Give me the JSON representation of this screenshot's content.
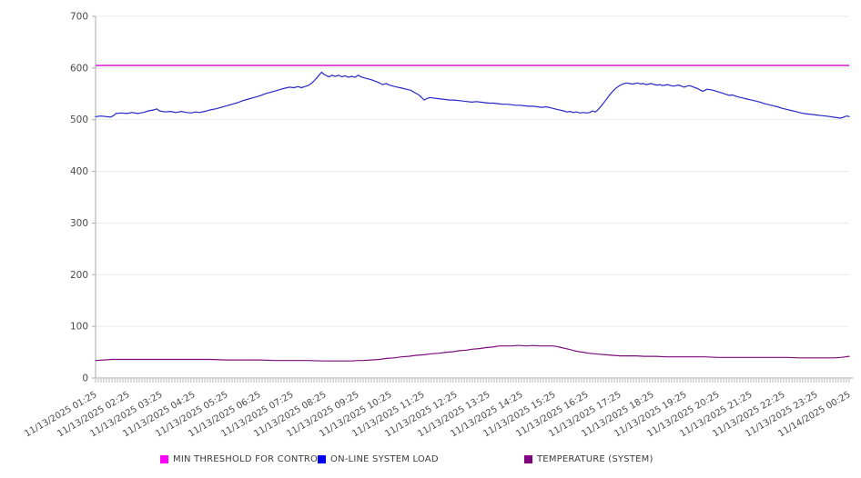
{
  "chart_data": {
    "type": "line",
    "title": "",
    "grid": "horizontal",
    "legend_position": "bottom",
    "style": {
      "background": "#ffffff",
      "axis_color": "#a9a9a9",
      "grid_color": "#eaeaea",
      "minor_tick_color": "#9a9a9a",
      "tick_label_color": "#4a4a4a"
    },
    "y_axis": {
      "min": 0,
      "max": 700,
      "ticks": [
        0,
        100,
        200,
        300,
        400,
        500,
        600,
        700
      ]
    },
    "x_axis": {
      "domain_minutes": [
        85,
        1465
      ],
      "minor_tick_interval_min": 5,
      "label_positions_minutes": [
        85,
        145,
        205,
        265,
        325,
        385,
        445,
        505,
        565,
        625,
        685,
        745,
        805,
        865,
        925,
        985,
        1045,
        1105,
        1165,
        1225,
        1285,
        1345,
        1405,
        1465
      ],
      "labels": [
        "11/13/2025 01:25",
        "11/13/2025 02:25",
        "11/13/2025 03:25",
        "11/13/2025 04:25",
        "11/13/2025 05:25",
        "11/13/2025 06:25",
        "11/13/2025 07:25",
        "11/13/2025 08:25",
        "11/13/2025 09:25",
        "11/13/2025 10:25",
        "11/13/2025 11:25",
        "11/13/2025 12:25",
        "11/13/2025 13:25",
        "11/13/2025 14:25",
        "11/13/2025 15:25",
        "11/13/2025 16:25",
        "11/13/2025 17:25",
        "11/13/2025 18:25",
        "11/13/2025 19:25",
        "11/13/2025 20:25",
        "11/13/2025 21:25",
        "11/13/2025 22:25",
        "11/13/2025 23:25",
        "11/14/2025 00:25"
      ]
    },
    "series": [
      {
        "name": "MIN THRESHOLD FOR CONTROL",
        "type": "threshold",
        "swatch_color": "#ff00ff",
        "line_color": "#d42ad4",
        "value": 605
      },
      {
        "name": "ON-LINE SYSTEM LOAD",
        "type": "line",
        "swatch_color": "#0000ee",
        "line_color": "#2727c8",
        "points": [
          [
            85,
            506
          ],
          [
            95,
            507
          ],
          [
            105,
            506
          ],
          [
            112,
            505
          ],
          [
            118,
            508
          ],
          [
            122,
            512
          ],
          [
            132,
            513
          ],
          [
            142,
            512
          ],
          [
            152,
            514
          ],
          [
            162,
            512
          ],
          [
            172,
            514
          ],
          [
            182,
            517
          ],
          [
            192,
            519
          ],
          [
            197,
            521
          ],
          [
            202,
            517
          ],
          [
            212,
            515
          ],
          [
            222,
            516
          ],
          [
            232,
            514
          ],
          [
            242,
            516
          ],
          [
            252,
            514
          ],
          [
            260,
            513
          ],
          [
            268,
            515
          ],
          [
            275,
            514
          ],
          [
            285,
            516
          ],
          [
            295,
            519
          ],
          [
            305,
            521
          ],
          [
            315,
            524
          ],
          [
            325,
            527
          ],
          [
            335,
            530
          ],
          [
            345,
            533
          ],
          [
            355,
            537
          ],
          [
            365,
            540
          ],
          [
            375,
            543
          ],
          [
            385,
            546
          ],
          [
            395,
            550
          ],
          [
            405,
            553
          ],
          [
            415,
            556
          ],
          [
            425,
            559
          ],
          [
            432,
            561
          ],
          [
            440,
            563
          ],
          [
            448,
            562
          ],
          [
            456,
            564
          ],
          [
            462,
            562
          ],
          [
            468,
            564
          ],
          [
            474,
            566
          ],
          [
            480,
            570
          ],
          [
            485,
            575
          ],
          [
            490,
            581
          ],
          [
            495,
            587
          ],
          [
            499,
            592
          ],
          [
            503,
            588
          ],
          [
            508,
            585
          ],
          [
            513,
            583
          ],
          [
            518,
            586
          ],
          [
            524,
            584
          ],
          [
            530,
            586
          ],
          [
            536,
            583
          ],
          [
            542,
            585
          ],
          [
            548,
            582
          ],
          [
            554,
            584
          ],
          [
            560,
            582
          ],
          [
            566,
            586
          ],
          [
            571,
            583
          ],
          [
            577,
            581
          ],
          [
            584,
            579
          ],
          [
            591,
            577
          ],
          [
            598,
            574
          ],
          [
            605,
            571
          ],
          [
            611,
            568
          ],
          [
            617,
            570
          ],
          [
            623,
            567
          ],
          [
            630,
            565
          ],
          [
            638,
            563
          ],
          [
            646,
            561
          ],
          [
            654,
            559
          ],
          [
            662,
            557
          ],
          [
            670,
            552
          ],
          [
            677,
            548
          ],
          [
            682,
            543
          ],
          [
            687,
            538
          ],
          [
            692,
            541
          ],
          [
            697,
            543
          ],
          [
            703,
            542
          ],
          [
            710,
            541
          ],
          [
            718,
            540
          ],
          [
            726,
            539
          ],
          [
            734,
            538
          ],
          [
            742,
            538
          ],
          [
            750,
            537
          ],
          [
            758,
            536
          ],
          [
            766,
            535
          ],
          [
            774,
            534
          ],
          [
            782,
            535
          ],
          [
            790,
            534
          ],
          [
            798,
            533
          ],
          [
            806,
            532
          ],
          [
            814,
            532
          ],
          [
            822,
            531
          ],
          [
            830,
            530
          ],
          [
            838,
            530
          ],
          [
            846,
            529
          ],
          [
            854,
            528
          ],
          [
            862,
            528
          ],
          [
            870,
            527
          ],
          [
            878,
            526
          ],
          [
            886,
            526
          ],
          [
            894,
            525
          ],
          [
            902,
            524
          ],
          [
            910,
            525
          ],
          [
            918,
            523
          ],
          [
            926,
            521
          ],
          [
            934,
            519
          ],
          [
            942,
            517
          ],
          [
            948,
            515
          ],
          [
            954,
            516
          ],
          [
            960,
            514
          ],
          [
            966,
            515
          ],
          [
            972,
            513
          ],
          [
            978,
            514
          ],
          [
            984,
            513
          ],
          [
            990,
            514
          ],
          [
            995,
            517
          ],
          [
            1000,
            515
          ],
          [
            1004,
            518
          ],
          [
            1008,
            523
          ],
          [
            1013,
            529
          ],
          [
            1018,
            536
          ],
          [
            1023,
            543
          ],
          [
            1028,
            550
          ],
          [
            1033,
            556
          ],
          [
            1038,
            561
          ],
          [
            1043,
            565
          ],
          [
            1048,
            568
          ],
          [
            1053,
            570
          ],
          [
            1058,
            571
          ],
          [
            1063,
            570
          ],
          [
            1068,
            569
          ],
          [
            1073,
            570
          ],
          [
            1078,
            571
          ],
          [
            1083,
            569
          ],
          [
            1088,
            570
          ],
          [
            1093,
            568
          ],
          [
            1098,
            569
          ],
          [
            1103,
            570
          ],
          [
            1108,
            568
          ],
          [
            1113,
            567
          ],
          [
            1118,
            568
          ],
          [
            1123,
            566
          ],
          [
            1128,
            567
          ],
          [
            1133,
            568
          ],
          [
            1138,
            566
          ],
          [
            1143,
            565
          ],
          [
            1148,
            566
          ],
          [
            1153,
            567
          ],
          [
            1158,
            565
          ],
          [
            1163,
            563
          ],
          [
            1168,
            565
          ],
          [
            1173,
            566
          ],
          [
            1178,
            564
          ],
          [
            1183,
            562
          ],
          [
            1188,
            560
          ],
          [
            1193,
            557
          ],
          [
            1197,
            555
          ],
          [
            1201,
            557
          ],
          [
            1205,
            559
          ],
          [
            1210,
            558
          ],
          [
            1216,
            557
          ],
          [
            1222,
            555
          ],
          [
            1228,
            553
          ],
          [
            1234,
            551
          ],
          [
            1240,
            549
          ],
          [
            1246,
            547
          ],
          [
            1251,
            548
          ],
          [
            1256,
            546
          ],
          [
            1262,
            544
          ],
          [
            1270,
            542
          ],
          [
            1278,
            540
          ],
          [
            1286,
            538
          ],
          [
            1294,
            536
          ],
          [
            1302,
            534
          ],
          [
            1310,
            531
          ],
          [
            1318,
            529
          ],
          [
            1326,
            527
          ],
          [
            1334,
            525
          ],
          [
            1342,
            522
          ],
          [
            1350,
            520
          ],
          [
            1358,
            518
          ],
          [
            1366,
            516
          ],
          [
            1374,
            514
          ],
          [
            1382,
            512
          ],
          [
            1390,
            511
          ],
          [
            1398,
            510
          ],
          [
            1406,
            509
          ],
          [
            1414,
            508
          ],
          [
            1422,
            507
          ],
          [
            1430,
            506
          ],
          [
            1436,
            505
          ],
          [
            1442,
            504
          ],
          [
            1448,
            503
          ],
          [
            1453,
            504
          ],
          [
            1457,
            506
          ],
          [
            1461,
            507
          ],
          [
            1465,
            506
          ]
        ]
      },
      {
        "name": "TEMPERATURE (SYSTEM)",
        "type": "line",
        "swatch_color": "#800080",
        "line_color": "#7d0d7d",
        "points": [
          [
            85,
            34
          ],
          [
            100,
            35
          ],
          [
            115,
            36
          ],
          [
            145,
            36
          ],
          [
            175,
            36
          ],
          [
            205,
            36
          ],
          [
            235,
            36
          ],
          [
            265,
            36
          ],
          [
            295,
            36
          ],
          [
            325,
            35
          ],
          [
            355,
            35
          ],
          [
            385,
            35
          ],
          [
            415,
            34
          ],
          [
            445,
            34
          ],
          [
            475,
            34
          ],
          [
            500,
            33
          ],
          [
            520,
            33
          ],
          [
            540,
            33
          ],
          [
            555,
            33
          ],
          [
            565,
            34
          ],
          [
            575,
            34
          ],
          [
            590,
            35
          ],
          [
            605,
            36
          ],
          [
            618,
            38
          ],
          [
            632,
            39
          ],
          [
            645,
            41
          ],
          [
            658,
            42
          ],
          [
            672,
            44
          ],
          [
            686,
            45
          ],
          [
            700,
            47
          ],
          [
            714,
            48
          ],
          [
            728,
            50
          ],
          [
            740,
            51
          ],
          [
            752,
            53
          ],
          [
            764,
            54
          ],
          [
            776,
            56
          ],
          [
            788,
            57
          ],
          [
            800,
            59
          ],
          [
            812,
            60
          ],
          [
            824,
            62
          ],
          [
            836,
            62
          ],
          [
            848,
            62
          ],
          [
            855,
            63
          ],
          [
            862,
            63
          ],
          [
            874,
            62
          ],
          [
            886,
            63
          ],
          [
            898,
            62
          ],
          [
            910,
            62
          ],
          [
            922,
            62
          ],
          [
            930,
            61
          ],
          [
            938,
            59
          ],
          [
            946,
            57
          ],
          [
            954,
            55
          ],
          [
            962,
            53
          ],
          [
            970,
            51
          ],
          [
            978,
            50
          ],
          [
            988,
            48
          ],
          [
            998,
            47
          ],
          [
            1008,
            46
          ],
          [
            1020,
            45
          ],
          [
            1032,
            44
          ],
          [
            1046,
            43
          ],
          [
            1060,
            43
          ],
          [
            1075,
            43
          ],
          [
            1090,
            42
          ],
          [
            1110,
            42
          ],
          [
            1130,
            41
          ],
          [
            1150,
            41
          ],
          [
            1175,
            41
          ],
          [
            1200,
            41
          ],
          [
            1225,
            40
          ],
          [
            1250,
            40
          ],
          [
            1275,
            40
          ],
          [
            1300,
            40
          ],
          [
            1325,
            40
          ],
          [
            1350,
            40
          ],
          [
            1375,
            39
          ],
          [
            1400,
            39
          ],
          [
            1420,
            39
          ],
          [
            1438,
            39
          ],
          [
            1450,
            40
          ],
          [
            1458,
            41
          ],
          [
            1465,
            42
          ]
        ]
      }
    ]
  }
}
